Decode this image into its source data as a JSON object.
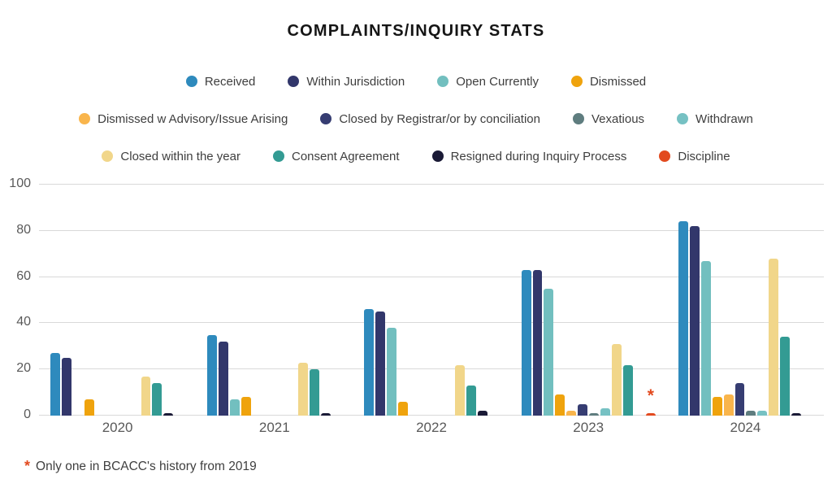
{
  "title": "COMPLAINTS/INQUIRY STATS",
  "footnote": {
    "asterisk": "*",
    "text": "Only one in BCACC's history from 2019"
  },
  "colors": {
    "background": "#ffffff",
    "title_text": "#151515",
    "legend_text": "#3e3e3e",
    "axis_text": "#595959",
    "gridline": "#d9d9d9",
    "annotation": "#e24a1f"
  },
  "chart_data": {
    "type": "bar",
    "title": "COMPLAINTS/INQUIRY STATS",
    "categories": [
      "2020",
      "2021",
      "2022",
      "2023",
      "2024"
    ],
    "xlabel": "",
    "ylabel": "",
    "ylim": [
      0,
      100
    ],
    "yticks": [
      0,
      20,
      40,
      60,
      80,
      100
    ],
    "grid": true,
    "legend_position": "top",
    "legend_rows": [
      [
        0,
        1,
        2,
        3
      ],
      [
        4,
        5,
        6,
        7
      ],
      [
        8,
        9,
        10,
        11
      ]
    ],
    "series": [
      {
        "name": "Received",
        "color": "#2e8abd",
        "values": [
          27,
          35,
          46,
          63,
          84
        ]
      },
      {
        "name": "Within Jurisdiction",
        "color": "#32376b",
        "values": [
          25,
          32,
          45,
          63,
          82
        ]
      },
      {
        "name": "Open Currently",
        "color": "#72bfbf",
        "values": [
          0,
          7,
          38,
          55,
          67
        ]
      },
      {
        "name": "Dismissed",
        "color": "#efa30d",
        "values": [
          7,
          8,
          6,
          9,
          8
        ]
      },
      {
        "name": "Dismissed w Advisory/Issue Arising",
        "color": "#f9b54c",
        "values": [
          0,
          0,
          0,
          2,
          9
        ]
      },
      {
        "name": "Closed by Registrar/or by conciliation",
        "color": "#363d72",
        "values": [
          0,
          0,
          0,
          5,
          14
        ]
      },
      {
        "name": "Vexatious",
        "color": "#5f7d7f",
        "values": [
          0,
          0,
          0,
          1,
          2
        ]
      },
      {
        "name": "Withdrawn",
        "color": "#76c1c3",
        "values": [
          0,
          0,
          0,
          3,
          2
        ]
      },
      {
        "name": "Closed within the year",
        "color": "#f1d68a",
        "values": [
          17,
          23,
          22,
          31,
          68
        ]
      },
      {
        "name": "Consent Agreement",
        "color": "#339b93",
        "values": [
          14,
          20,
          13,
          22,
          34
        ]
      },
      {
        "name": "Resigned during Inquiry Process",
        "color": "#1a1a36",
        "values": [
          1,
          1,
          2,
          0,
          1
        ]
      },
      {
        "name": "Discipline",
        "color": "#e24a1f",
        "values": [
          0,
          0,
          0,
          1,
          0
        ]
      }
    ],
    "annotations": [
      {
        "text": "*",
        "category": "2023",
        "series": "Discipline",
        "color": "#e24a1f"
      }
    ]
  }
}
